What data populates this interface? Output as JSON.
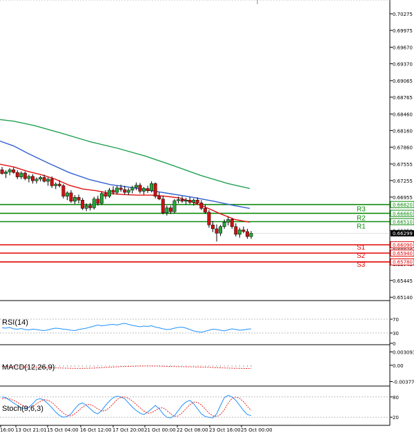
{
  "chart_data": {
    "type": "candlestick",
    "main": {
      "price_axis": [
        "0.70275",
        "0.69975",
        "0.69670",
        "0.69370",
        "0.69065",
        "0.68765",
        "0.68460",
        "0.68160",
        "0.67860",
        "0.67555",
        "0.67255",
        "0.66955",
        "0.66650",
        "0.66350",
        "0.66045",
        "0.65745",
        "0.65445",
        "0.65140"
      ],
      "current_price": "0.66299",
      "ylim": [
        0.6508,
        0.7045
      ],
      "levels": [
        {
          "name": "R3",
          "value": "0.66820",
          "kind": "resistance",
          "color": "#0a8a0a"
        },
        {
          "name": "R2",
          "value": "0.66660",
          "kind": "resistance",
          "color": "#0a8a0a"
        },
        {
          "name": "R1",
          "value": "0.66510",
          "kind": "resistance",
          "color": "#0a8a0a"
        },
        {
          "name": "S1",
          "value": "0.66090",
          "kind": "support",
          "color": "#e00000"
        },
        {
          "name": "S2",
          "value": "0.65940",
          "kind": "support",
          "color": "#e00000"
        },
        {
          "name": "S3",
          "value": "0.65780",
          "kind": "support",
          "color": "#e00000"
        }
      ],
      "moving_averages": [
        {
          "color": "#20a050",
          "points": [
            [
              0,
              0.6836
            ],
            [
              20,
              0.6833
            ],
            [
              50,
              0.6825
            ],
            [
              90,
              0.6811
            ],
            [
              130,
              0.6796
            ],
            [
              170,
              0.6784
            ],
            [
              210,
              0.677
            ],
            [
              250,
              0.6753
            ],
            [
              290,
              0.6735
            ],
            [
              330,
              0.672
            ],
            [
              362,
              0.6711
            ]
          ]
        },
        {
          "color": "#3060d0",
          "points": [
            [
              0,
              0.6797
            ],
            [
              20,
              0.6788
            ],
            [
              40,
              0.6775
            ],
            [
              70,
              0.6757
            ],
            [
              100,
              0.674
            ],
            [
              130,
              0.6727
            ],
            [
              160,
              0.6718
            ],
            [
              190,
              0.6713
            ],
            [
              220,
              0.6707
            ],
            [
              250,
              0.6701
            ],
            [
              280,
              0.6695
            ],
            [
              310,
              0.6688
            ],
            [
              340,
              0.668
            ],
            [
              362,
              0.6675
            ]
          ]
        },
        {
          "color": "#e01010",
          "points": [
            [
              0,
              0.6755
            ],
            [
              20,
              0.675
            ],
            [
              40,
              0.6742
            ],
            [
              60,
              0.6736
            ],
            [
              80,
              0.6728
            ],
            [
              100,
              0.6717
            ],
            [
              120,
              0.671
            ],
            [
              140,
              0.6707
            ],
            [
              160,
              0.6702
            ],
            [
              180,
              0.67
            ],
            [
              200,
              0.6699
            ],
            [
              220,
              0.6699
            ],
            [
              240,
              0.6697
            ],
            [
              260,
              0.6694
            ],
            [
              280,
              0.6686
            ],
            [
              300,
              0.6676
            ],
            [
              320,
              0.6665
            ],
            [
              340,
              0.6655
            ],
            [
              362,
              0.665
            ]
          ]
        }
      ],
      "candles": [
        [
          0.6745,
          0.675,
          0.6736,
          0.6738
        ],
        [
          0.6738,
          0.6744,
          0.673,
          0.6741
        ],
        [
          0.6741,
          0.6748,
          0.6735,
          0.6745
        ],
        [
          0.6745,
          0.6749,
          0.6738,
          0.674
        ],
        [
          0.674,
          0.6744,
          0.6728,
          0.6732
        ],
        [
          0.6732,
          0.6742,
          0.6728,
          0.6739
        ],
        [
          0.6739,
          0.6742,
          0.6726,
          0.6729
        ],
        [
          0.6729,
          0.6736,
          0.6722,
          0.6733
        ],
        [
          0.6733,
          0.6737,
          0.672,
          0.6725
        ],
        [
          0.6725,
          0.6731,
          0.672,
          0.6728
        ],
        [
          0.6728,
          0.6734,
          0.6724,
          0.6731
        ],
        [
          0.6731,
          0.6736,
          0.6722,
          0.6724
        ],
        [
          0.6724,
          0.6731,
          0.6716,
          0.6728
        ],
        [
          0.6728,
          0.6733,
          0.6712,
          0.6716
        ],
        [
          0.6716,
          0.6722,
          0.671,
          0.6719
        ],
        [
          0.6719,
          0.6726,
          0.6713,
          0.6716
        ],
        [
          0.6716,
          0.6719,
          0.6693,
          0.6697
        ],
        [
          0.6697,
          0.6706,
          0.669,
          0.6703
        ],
        [
          0.6703,
          0.6708,
          0.6685,
          0.6688
        ],
        [
          0.6688,
          0.6699,
          0.6683,
          0.6695
        ],
        [
          0.6695,
          0.67,
          0.6684,
          0.669
        ],
        [
          0.669,
          0.6694,
          0.6672,
          0.6675
        ],
        [
          0.6675,
          0.6684,
          0.667,
          0.668
        ],
        [
          0.668,
          0.6685,
          0.6671,
          0.6676
        ],
        [
          0.6676,
          0.6696,
          0.6673,
          0.6692
        ],
        [
          0.6692,
          0.6698,
          0.668,
          0.6684
        ],
        [
          0.6684,
          0.6706,
          0.6681,
          0.6702
        ],
        [
          0.6702,
          0.6708,
          0.6692,
          0.6697
        ],
        [
          0.6697,
          0.6712,
          0.6694,
          0.6708
        ],
        [
          0.6708,
          0.6715,
          0.67,
          0.6704
        ],
        [
          0.6704,
          0.6716,
          0.67,
          0.6712
        ],
        [
          0.6712,
          0.6718,
          0.6705,
          0.6709
        ],
        [
          0.6709,
          0.6716,
          0.67,
          0.6704
        ],
        [
          0.6704,
          0.6712,
          0.6699,
          0.6708
        ],
        [
          0.6708,
          0.6716,
          0.6702,
          0.6713
        ],
        [
          0.6713,
          0.6722,
          0.6708,
          0.6717
        ],
        [
          0.6717,
          0.6721,
          0.6702,
          0.6706
        ],
        [
          0.6706,
          0.6714,
          0.67,
          0.6711
        ],
        [
          0.6711,
          0.6716,
          0.6703,
          0.6707
        ],
        [
          0.6707,
          0.6724,
          0.6704,
          0.672
        ],
        [
          0.672,
          0.6722,
          0.6693,
          0.6697
        ],
        [
          0.6697,
          0.6704,
          0.669,
          0.6692
        ],
        [
          0.6692,
          0.6698,
          0.6664,
          0.6667
        ],
        [
          0.6667,
          0.668,
          0.6662,
          0.6676
        ],
        [
          0.6676,
          0.668,
          0.6665,
          0.6669
        ],
        [
          0.6669,
          0.6692,
          0.6666,
          0.6689
        ],
        [
          0.6689,
          0.6696,
          0.6684,
          0.6691
        ],
        [
          0.6691,
          0.6697,
          0.6685,
          0.6688
        ],
        [
          0.6688,
          0.6694,
          0.6682,
          0.669
        ],
        [
          0.669,
          0.6696,
          0.6683,
          0.6686
        ],
        [
          0.6686,
          0.6693,
          0.668,
          0.669
        ],
        [
          0.669,
          0.6695,
          0.6682,
          0.6685
        ],
        [
          0.6685,
          0.669,
          0.6672,
          0.6675
        ],
        [
          0.6675,
          0.6682,
          0.6665,
          0.6668
        ],
        [
          0.6668,
          0.6672,
          0.664,
          0.6645
        ],
        [
          0.6645,
          0.6652,
          0.6632,
          0.6638
        ],
        [
          0.6638,
          0.6646,
          0.6615,
          0.663
        ],
        [
          0.663,
          0.6645,
          0.6625,
          0.6642
        ],
        [
          0.6642,
          0.6655,
          0.6638,
          0.665
        ],
        [
          0.665,
          0.666,
          0.6644,
          0.6655
        ],
        [
          0.6655,
          0.6658,
          0.6638,
          0.6642
        ],
        [
          0.6642,
          0.6648,
          0.6624,
          0.6628
        ],
        [
          0.6628,
          0.664,
          0.6622,
          0.6636
        ],
        [
          0.6636,
          0.6642,
          0.663,
          0.6633
        ],
        [
          0.6633,
          0.6638,
          0.662,
          0.6624
        ],
        [
          0.6624,
          0.6634,
          0.662,
          0.663
        ]
      ]
    },
    "rsi": {
      "label": "RSI(14)",
      "axis": [
        "70",
        "30",
        "0"
      ],
      "ylim": [
        0,
        100
      ],
      "values": [
        45,
        44,
        46,
        42,
        41,
        43,
        40,
        39,
        41,
        40,
        38,
        37,
        39,
        42,
        44,
        43,
        41,
        40,
        38,
        37,
        40,
        42,
        44,
        47,
        50,
        53,
        51,
        52,
        54,
        55,
        53,
        56,
        58,
        55,
        52,
        50,
        48,
        50,
        49,
        51,
        47,
        45,
        42,
        40,
        41,
        44,
        46,
        47,
        44,
        40,
        36,
        34,
        32,
        35,
        38,
        41,
        40,
        38,
        36,
        39,
        42,
        40,
        38,
        39,
        41,
        42
      ]
    },
    "macd": {
      "label": "MACD(12,26,9)",
      "axis": [
        "0.003093",
        "0.00",
        "-0.003776"
      ],
      "ylim": [
        -0.0045,
        0.0038
      ],
      "hist": [
        -0.00025,
        -0.00024,
        -0.00023,
        -0.00025,
        -0.00027,
        -0.00026,
        -0.00028,
        -0.00027,
        -0.0003,
        -0.00029,
        -0.00031,
        -0.0003,
        -0.00029,
        -0.00031,
        -0.00033,
        -0.00032,
        -0.00036,
        -0.00035,
        -0.00038,
        -0.00036,
        -0.00037,
        -0.00039,
        -0.00038,
        -0.0004,
        -0.00036,
        -0.00034,
        -0.0003,
        -0.00028,
        -0.00025,
        -0.00023,
        -0.0002,
        -0.00019,
        -0.00018,
        -0.00016,
        -0.00014,
        -0.00012,
        -0.00013,
        -0.00012,
        -0.00011,
        -9e-05,
        -0.00012,
        -0.00015,
        -0.0002,
        -0.00022,
        -0.00024,
        -0.00022,
        -0.0002,
        -0.00019,
        -0.00018,
        -0.00019,
        -0.0002,
        -0.00021,
        -0.00023,
        -0.00026,
        -0.0003,
        -0.00034,
        -0.00036,
        -0.00035,
        -0.00033,
        -0.00032,
        -0.00033,
        -0.00036,
        -0.00037,
        -0.00038,
        -0.00039,
        -0.0004
      ],
      "signal": [
        -0.0003,
        -0.0003,
        -0.00032,
        -0.00034,
        -0.00036,
        -0.00038,
        -0.0004,
        -0.00042,
        -0.00044,
        -0.00047,
        -0.0005,
        -0.00053,
        -0.00056,
        -0.00059,
        -0.00062,
        -0.00064,
        -0.00066,
        -0.00068,
        -0.0007,
        -0.00071,
        -0.00072,
        -0.00072,
        -0.0007,
        -0.00068,
        -0.00065,
        -0.00061,
        -0.00056,
        -0.0005,
        -0.00045,
        -0.0004,
        -0.00036,
        -0.00032,
        -0.00029,
        -0.00026,
        -0.00023,
        -0.00021,
        -0.00019,
        -0.00018,
        -0.00017,
        -0.00017,
        -0.00018,
        -0.0002,
        -0.00023,
        -0.00026,
        -0.00029,
        -0.00031,
        -0.00033,
        -0.00034,
        -0.00035,
        -0.00036,
        -0.00037,
        -0.00039,
        -0.00041,
        -0.00044,
        -0.00048,
        -0.00052,
        -0.00056,
        -0.0006,
        -0.00063,
        -0.00066,
        -0.00068,
        -0.0007,
        -0.00072,
        -0.00074,
        -0.00075,
        -0.00076
      ]
    },
    "stoch": {
      "label": "Stoch(9,6,3)",
      "axis": [
        "80",
        "20"
      ],
      "ylim": [
        0,
        100
      ],
      "main_line": [
        80,
        78,
        70,
        62,
        55,
        48,
        45,
        50,
        60,
        72,
        75,
        70,
        60,
        48,
        35,
        25,
        20,
        22,
        30,
        45,
        58,
        62,
        55,
        45,
        35,
        30,
        40,
        55,
        68,
        78,
        82,
        80,
        75,
        62,
        50,
        40,
        32,
        28,
        35,
        45,
        55,
        45,
        30,
        20,
        18,
        25,
        40,
        55,
        65,
        70,
        60,
        45,
        30,
        22,
        20,
        18,
        30,
        55,
        78,
        85,
        80,
        70,
        55,
        40,
        28,
        25
      ],
      "signal_line": [
        75,
        76,
        74,
        70,
        64,
        57,
        51,
        49,
        52,
        60,
        67,
        72,
        70,
        64,
        53,
        42,
        32,
        25,
        24,
        30,
        40,
        50,
        57,
        58,
        52,
        45,
        38,
        40,
        48,
        60,
        72,
        79,
        80,
        76,
        68,
        58,
        48,
        38,
        32,
        33,
        40,
        47,
        48,
        40,
        30,
        22,
        24,
        33,
        45,
        57,
        65,
        64,
        56,
        44,
        32,
        24,
        22,
        28,
        42,
        62,
        76,
        80,
        76,
        66,
        52,
        40
      ],
      "time_axis": [
        "16:00",
        "13 Oct 21:01",
        "15 Oct 04:00",
        "16 Oct 12:00",
        "17 Oct 20:00",
        "21 Oct 00:00",
        "22 Oct 08:00",
        "23 Oct 16:00",
        "25 Oct 00:00"
      ]
    }
  }
}
